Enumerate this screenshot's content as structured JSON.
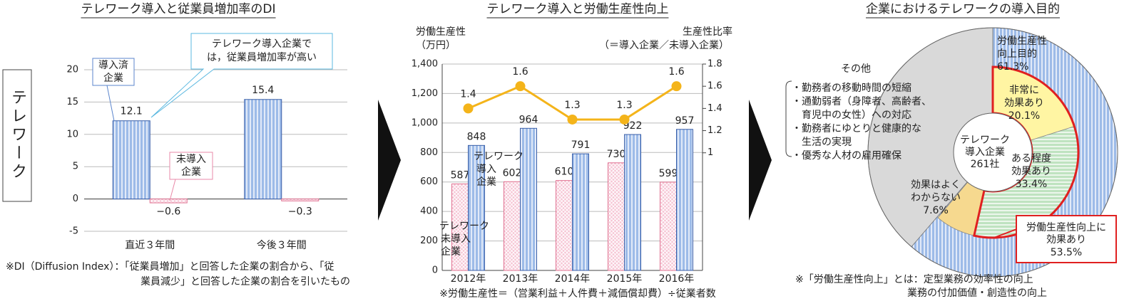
{
  "chart_data": [
    {
      "type": "bar",
      "title": "テレワーク導入と従業員増加率のDI",
      "side_label": "テレワーク",
      "categories": [
        "直近３年間",
        "今後３年間"
      ],
      "series": [
        {
          "name": "導入済\n企業",
          "color": "#9dbbe8",
          "values": [
            12.1,
            15.4
          ]
        },
        {
          "name": "未導入\n企業",
          "color": "#f6c3d3",
          "values": [
            -0.6,
            -0.3
          ],
          "value_labels": [
            "−0.6",
            "−0.3"
          ]
        }
      ],
      "annotation": "テレワーク導入企業で\nは，従業員増加率が高い",
      "ylim": [
        -5,
        20
      ],
      "yticks": [
        -5,
        0,
        5,
        10,
        15,
        20
      ],
      "grid": true,
      "notes": [
        "※DI（Diffusion Index）：「従業員増加」と回答した企業の割合から、「従",
        "業員減少」と回答した企業の割合を引いたもの"
      ]
    },
    {
      "type": "bar_line",
      "title": "テレワーク導入と労働生産性向上",
      "y_label": "労働生産性\n（万円）",
      "y2_label": "生産性比率\n（＝導入企業／未導入企業）",
      "categories": [
        "2012年",
        "2013年",
        "2014年",
        "2015年",
        "2016年"
      ],
      "series": [
        {
          "name": "テレワーク\n未導入\n企業",
          "color": "#f6c3d3",
          "values": [
            587,
            602,
            610,
            730,
            599
          ]
        },
        {
          "name": "テレワーク\n導入\n企業",
          "color": "#9dbbe8",
          "values": [
            848,
            964,
            791,
            922,
            957
          ]
        },
        {
          "color": "#f4b41a",
          "axis": "y2",
          "values": [
            1.4,
            1.6,
            1.3,
            1.3,
            1.6
          ]
        }
      ],
      "ylim": [
        0,
        1400
      ],
      "yticks": [
        0,
        200,
        400,
        600,
        800,
        {
          "value": 1000,
          "label": "1,000"
        },
        {
          "value": 1200,
          "label": "1,200"
        },
        {
          "value": 1400,
          "label": "1,400"
        }
      ],
      "y2lim": [
        -0.06,
        1.8
      ],
      "y2ticks": [
        1,
        1.2,
        1.4,
        1.6,
        1.8
      ],
      "grid": true,
      "notes": [
        "※労働生産性＝（営業利益＋人件費＋減価償却費）÷従業者数"
      ]
    },
    {
      "type": "donut",
      "title": "企業におけるテレワークの導入目的",
      "center_label": "テレワーク\n導入企業\n261社",
      "outer": {
        "categories": [
          "労働生産性\n向上目的",
          "その他"
        ],
        "values": [
          61.3,
          38.7
        ],
        "value_labels": [
          "61.3%",
          null
        ],
        "colors": [
          "#9dbbe8",
          "#d9d9d9"
        ]
      },
      "inner": {
        "categories": [
          "非常に\n効果あり",
          "ある程度\n効果あり",
          "効果はよく\nわからない"
        ],
        "values": [
          20.1,
          33.4,
          7.6
        ],
        "value_labels": [
          "20.1%",
          "33.4%",
          "7.6%"
        ],
        "colors": [
          "#fff5a3",
          "#bfe3c0",
          "#f6d98f"
        ]
      },
      "callout": {
        "text": "労働生産性向上に\n効果あり",
        "value": 53.5,
        "value_label": "53.5%",
        "color": "#e02020"
      },
      "other_items": [
        "・勤務者の移動時間の短縮",
        "・通勤弱者（身障者、高齢者、\n育児中の女性）への対応",
        "・勤務者にゆとりと健康的な\n生活の実現",
        "・優秀な人材の雇用確保"
      ],
      "notes": [
        "※「労働生産性向上」とは：定型業務の効率性の向上",
        "業務の付加価値・創造性の向上"
      ]
    }
  ]
}
